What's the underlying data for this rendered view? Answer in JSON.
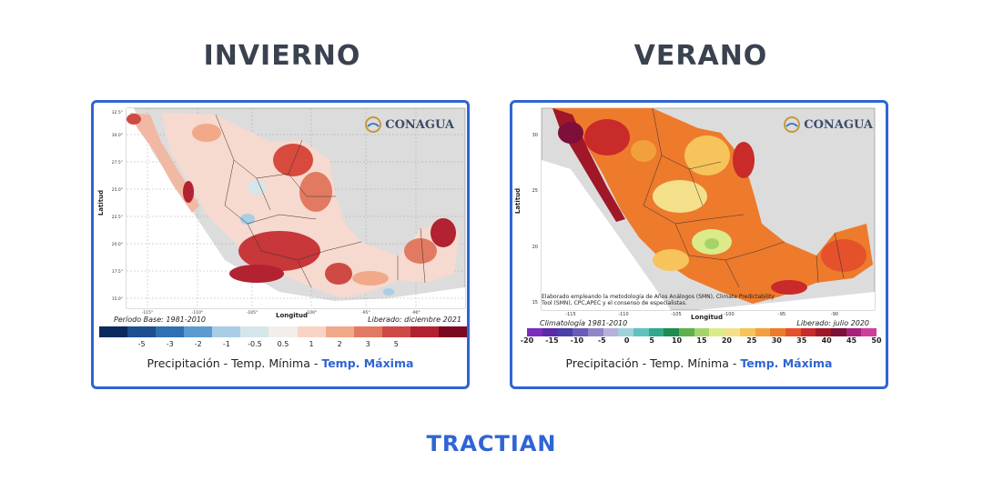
{
  "winter": {
    "heading": "INVIERNO",
    "brand_name": "CONAGUA",
    "period_label": "Período Base: 1981-2010",
    "released_label": "Liberado: diciembre 2021",
    "axis_x_label": "Longitud",
    "axis_y_label": "Latitud",
    "colorbar_colors": [
      "#0b2a5e",
      "#1d4e8f",
      "#2f6fb3",
      "#5b9bd0",
      "#a9cde4",
      "#d4e6ea",
      "#f3eeea",
      "#f8d4c4",
      "#f1a98a",
      "#e27a62",
      "#cf4a44",
      "#b22230",
      "#7a0a20"
    ],
    "colorbar_ticks": [
      "-5",
      "-3",
      "-2",
      "-1",
      "-0.5",
      "0.5",
      "1",
      "2",
      "3",
      "5"
    ],
    "lon_ticks": [
      "-115°",
      "-110°",
      "-105°",
      "-100°",
      "-95°",
      "-90°"
    ],
    "lat_ticks": [
      "32.5°",
      "30.0°",
      "27.5°",
      "25.0°",
      "22.5°",
      "20.0°",
      "17.5°",
      "15.0°"
    ],
    "caption_a": "Precipitación - Temp. Mínima - ",
    "caption_b": "Temp. Máxima"
  },
  "summer": {
    "heading": "VERANO",
    "brand_name": "CONAGUA",
    "period_label": "Climatología 1981-2010",
    "released_label": "Liberado: julio 2020",
    "axis_x_label": "Longitud",
    "axis_y_label": "Latitud",
    "note": "Elaborado empleando la metodología de Años Análogos (SMN), Climate Predictability Tool (SMN), CPC,APEC y el consenso de especialistas.",
    "colorbar_colors": [
      "#7b2cbf",
      "#5a2ba8",
      "#4b3ea6",
      "#6a5bb8",
      "#8f86c8",
      "#b6b0dc",
      "#9dd3d8",
      "#5fc2c0",
      "#2fa88e",
      "#1e8c4e",
      "#5db14a",
      "#a5d36a",
      "#dbeb8a",
      "#f4e08a",
      "#f6c45a",
      "#f2a03c",
      "#ee7a2c",
      "#e4512a",
      "#c92a2a",
      "#a01828",
      "#7d0f3a",
      "#a8207a",
      "#d03e9c"
    ],
    "colorbar_ticks": [
      "-20",
      "-15",
      "-10",
      "-5",
      "0",
      "5",
      "10",
      "15",
      "20",
      "25",
      "30",
      "35",
      "40",
      "45",
      "50"
    ],
    "lon_ticks": [
      "-115",
      "-110",
      "-105",
      "-100",
      "-95",
      "-90"
    ],
    "lat_ticks": [
      "30",
      "25",
      "20",
      "15"
    ],
    "caption_a": "Precipitación - Temp. Mínima - ",
    "caption_b": "Temp. Máxima"
  },
  "footer": {
    "brand": "TRACTIAN"
  }
}
